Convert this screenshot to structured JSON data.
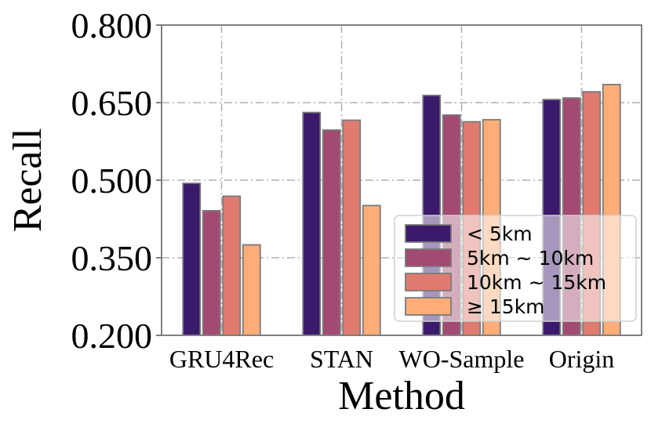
{
  "chart_data": {
    "type": "bar",
    "xlabel": "Method",
    "ylabel": "Recall",
    "ylim": [
      0.2,
      0.8
    ],
    "yticks": [
      "0.200",
      "0.350",
      "0.500",
      "0.650",
      "0.800"
    ],
    "yticks_values": [
      0.2,
      0.35,
      0.5,
      0.65,
      0.8
    ],
    "categories": [
      "GRU4Rec",
      "STAN",
      "WO-Sample",
      "Origin"
    ],
    "grid": true,
    "legend_position": "lower-right",
    "series": [
      {
        "name": "< 5km",
        "color": "#3b1a6b",
        "values": [
          0.494,
          0.631,
          0.664,
          0.656
        ]
      },
      {
        "name": "5km ~ 10km",
        "color": "#a24a72",
        "values": [
          0.441,
          0.597,
          0.626,
          0.659
        ]
      },
      {
        "name": "10km ~ 15km",
        "color": "#e07b70",
        "values": [
          0.469,
          0.616,
          0.613,
          0.671
        ]
      },
      {
        "name": "≥ 15km",
        "color": "#fdae78",
        "values": [
          0.375,
          0.451,
          0.617,
          0.685
        ]
      }
    ]
  }
}
